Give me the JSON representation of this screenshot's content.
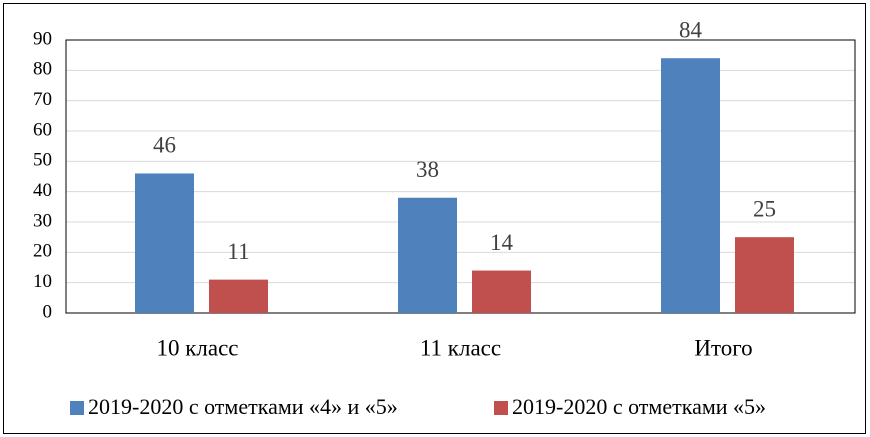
{
  "chart_data": {
    "type": "bar",
    "categories": [
      "10 класс",
      "11 класс",
      "Итого"
    ],
    "series": [
      {
        "name": "2019-2020 с отметками «4» и «5»",
        "color": "#4f81bd",
        "values": [
          46,
          38,
          84
        ]
      },
      {
        "name": "2019-2020 с отметками «5»",
        "color": "#c0504d",
        "values": [
          11,
          14,
          25
        ]
      }
    ],
    "ylim": [
      0,
      90
    ],
    "yticks": [
      0,
      10,
      20,
      30,
      40,
      50,
      60,
      70,
      80,
      90
    ],
    "grid": true,
    "legend": "bottom"
  }
}
